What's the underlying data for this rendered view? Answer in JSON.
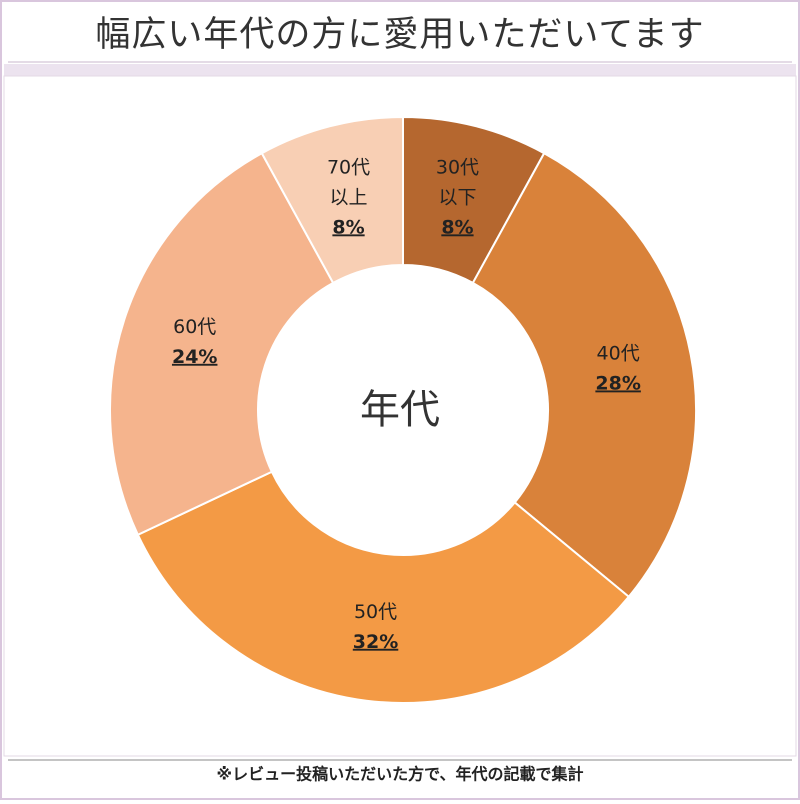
{
  "chart_data": {
    "type": "donut",
    "title": "幅広い年代の方に愛用いただいてます",
    "center_label": "年代",
    "note": "※レビュー投稿いただいた方で、年代の記載で集計",
    "categories": [
      [
        "30代",
        "以下"
      ],
      [
        "40代"
      ],
      [
        "50代"
      ],
      [
        "60代"
      ],
      [
        "70代",
        "以上"
      ]
    ],
    "values": [
      8,
      28,
      32,
      24,
      8
    ],
    "value_labels": [
      "8%",
      "28%",
      "32%",
      "24%",
      "8%"
    ],
    "colors": [
      "#b5672f",
      "#d9823a",
      "#f39a45",
      "#f5b48d",
      "#f8cfb4"
    ]
  }
}
